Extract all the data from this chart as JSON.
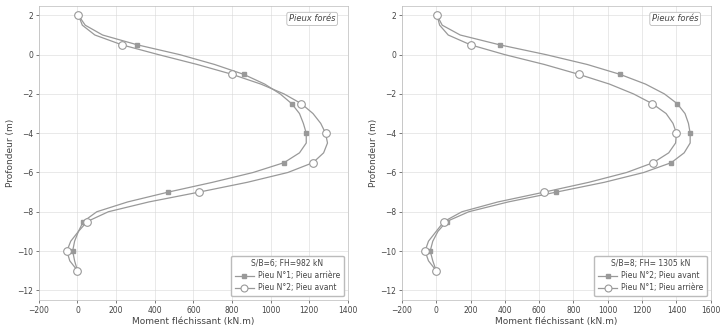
{
  "chart1": {
    "title_box": "Pieux forés",
    "legend_title": "S/B=6; FH=982 kN",
    "legend_line1": "Pieu N°1; Pieu arrière",
    "legend_line2": "Pieu N°2; Pieu avant",
    "ylabel": "Profondeur (m)",
    "xlabel": "Moment fléchissant (kN.m)",
    "xlim": [
      -200,
      1400
    ],
    "ylim": [
      -12.5,
      2.5
    ],
    "yticks": [
      2.0,
      0.0,
      -2.0,
      -4.0,
      -6.0,
      -8.0,
      -10.0,
      -12.0
    ],
    "xticks": [
      -200,
      0,
      200,
      400,
      600,
      800,
      1000,
      1200,
      1400
    ],
    "curve1_depth": [
      2.0,
      1.5,
      1.0,
      0.5,
      0.0,
      -0.5,
      -1.0,
      -1.5,
      -2.0,
      -2.5,
      -3.0,
      -3.5,
      -4.0,
      -4.5,
      -5.0,
      -5.5,
      -6.0,
      -6.5,
      -7.0,
      -7.5,
      -8.0,
      -8.5,
      -9.0,
      -9.5,
      -10.0,
      -10.5,
      -11.0
    ],
    "curve1_moment": [
      5,
      40,
      130,
      310,
      530,
      710,
      860,
      970,
      1050,
      1110,
      1150,
      1170,
      1185,
      1185,
      1150,
      1070,
      910,
      700,
      470,
      260,
      100,
      30,
      5,
      -15,
      -25,
      -15,
      0
    ],
    "curve2_depth": [
      2.0,
      1.5,
      1.0,
      0.5,
      0.0,
      -0.5,
      -1.0,
      -1.5,
      -2.0,
      -2.5,
      -3.0,
      -3.5,
      -4.0,
      -4.5,
      -5.0,
      -5.5,
      -6.0,
      -6.5,
      -7.0,
      -7.5,
      -8.0,
      -8.5,
      -9.0,
      -9.5,
      -10.0,
      -10.5,
      -11.0
    ],
    "curve2_moment": [
      5,
      25,
      90,
      230,
      420,
      620,
      800,
      950,
      1070,
      1160,
      1220,
      1260,
      1285,
      1295,
      1275,
      1220,
      1090,
      880,
      630,
      370,
      160,
      50,
      5,
      -35,
      -55,
      -40,
      0
    ],
    "marker_depths": [
      2.0,
      0.5,
      -1.0,
      -2.5,
      -4.0,
      -5.5,
      -7.0,
      -8.5,
      -10.0,
      -11.0
    ]
  },
  "chart2": {
    "title_box": "Pieux forés",
    "legend_title": "S/B=8; FH= 1305 kN",
    "legend_line1": "Pieu N°2; Pieu avant",
    "legend_line2": "Pieu N°1; Pieu arrière",
    "ylabel": "Profondeur (m)",
    "xlabel": "Moment fléchissant (kN.m)",
    "xlim": [
      -200,
      1600
    ],
    "ylim": [
      -12.5,
      2.5
    ],
    "yticks": [
      2.0,
      0.0,
      -2.0,
      -4.0,
      -6.0,
      -8.0,
      -10.0,
      -12.0
    ],
    "xticks": [
      -200,
      0,
      200,
      400,
      600,
      800,
      1000,
      1200,
      1400,
      1600
    ],
    "curve1_depth": [
      2.0,
      1.5,
      1.0,
      0.5,
      0.0,
      -0.5,
      -1.0,
      -1.5,
      -2.0,
      -2.5,
      -3.0,
      -3.5,
      -4.0,
      -4.5,
      -5.0,
      -5.5,
      -6.0,
      -6.5,
      -7.0,
      -7.5,
      -8.0,
      -8.5,
      -9.0,
      -9.5,
      -10.0,
      -10.5,
      -11.0
    ],
    "curve1_moment": [
      5,
      35,
      140,
      370,
      640,
      880,
      1070,
      1220,
      1330,
      1405,
      1450,
      1470,
      1480,
      1480,
      1445,
      1370,
      1210,
      980,
      700,
      420,
      190,
      60,
      10,
      -20,
      -35,
      -20,
      0
    ],
    "curve2_depth": [
      2.0,
      1.5,
      1.0,
      0.5,
      0.0,
      -0.5,
      -1.0,
      -1.5,
      -2.0,
      -2.5,
      -3.0,
      -3.5,
      -4.0,
      -4.5,
      -5.0,
      -5.5,
      -6.0,
      -6.5,
      -7.0,
      -7.5,
      -8.0,
      -8.5,
      -9.0,
      -9.5,
      -10.0,
      -10.5,
      -11.0
    ],
    "curve2_moment": [
      5,
      20,
      70,
      200,
      400,
      630,
      830,
      1010,
      1150,
      1260,
      1340,
      1380,
      1400,
      1395,
      1355,
      1265,
      1110,
      890,
      630,
      360,
      150,
      45,
      0,
      -45,
      -65,
      -45,
      0
    ],
    "marker_depths": [
      2.0,
      0.5,
      -1.0,
      -2.5,
      -4.0,
      -5.5,
      -7.0,
      -8.5,
      -10.0,
      -11.0
    ]
  },
  "line_color": "#999999",
  "bg_color": "#ffffff",
  "grid_color": "#d8d8d8",
  "text_color": "#444444",
  "spine_color": "#bbbbbb"
}
